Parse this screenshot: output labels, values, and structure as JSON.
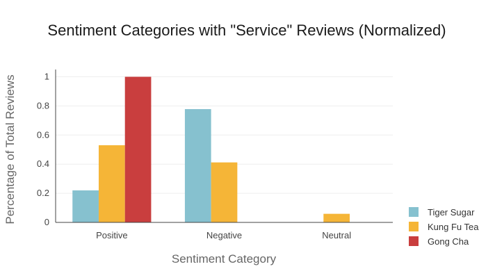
{
  "chart_data": {
    "type": "bar",
    "title": "Sentiment Categories with \"Service\" Reviews (Normalized)",
    "xlabel": "Sentiment Category",
    "ylabel": "Percentage of Total Reviews",
    "categories": [
      "Positive",
      "Negative",
      "Neutral"
    ],
    "series": [
      {
        "name": "Tiger Sugar",
        "color": "#86c1cf",
        "values": [
          0.22,
          0.778,
          0
        ]
      },
      {
        "name": "Kung Fu Tea",
        "color": "#f5b537",
        "values": [
          0.53,
          0.412,
          0.059
        ]
      },
      {
        "name": "Gong Cha",
        "color": "#c93e3e",
        "values": [
          1.0,
          0,
          0
        ]
      }
    ],
    "ylim": [
      0,
      1.05
    ],
    "yticks": [
      0,
      0.2,
      0.4,
      0.6,
      0.8,
      1
    ],
    "ytick_labels": [
      "0",
      "0.2",
      "0.4",
      "0.6",
      "0.8",
      "1"
    ],
    "grid": true,
    "legend_position": "bottom-right"
  }
}
